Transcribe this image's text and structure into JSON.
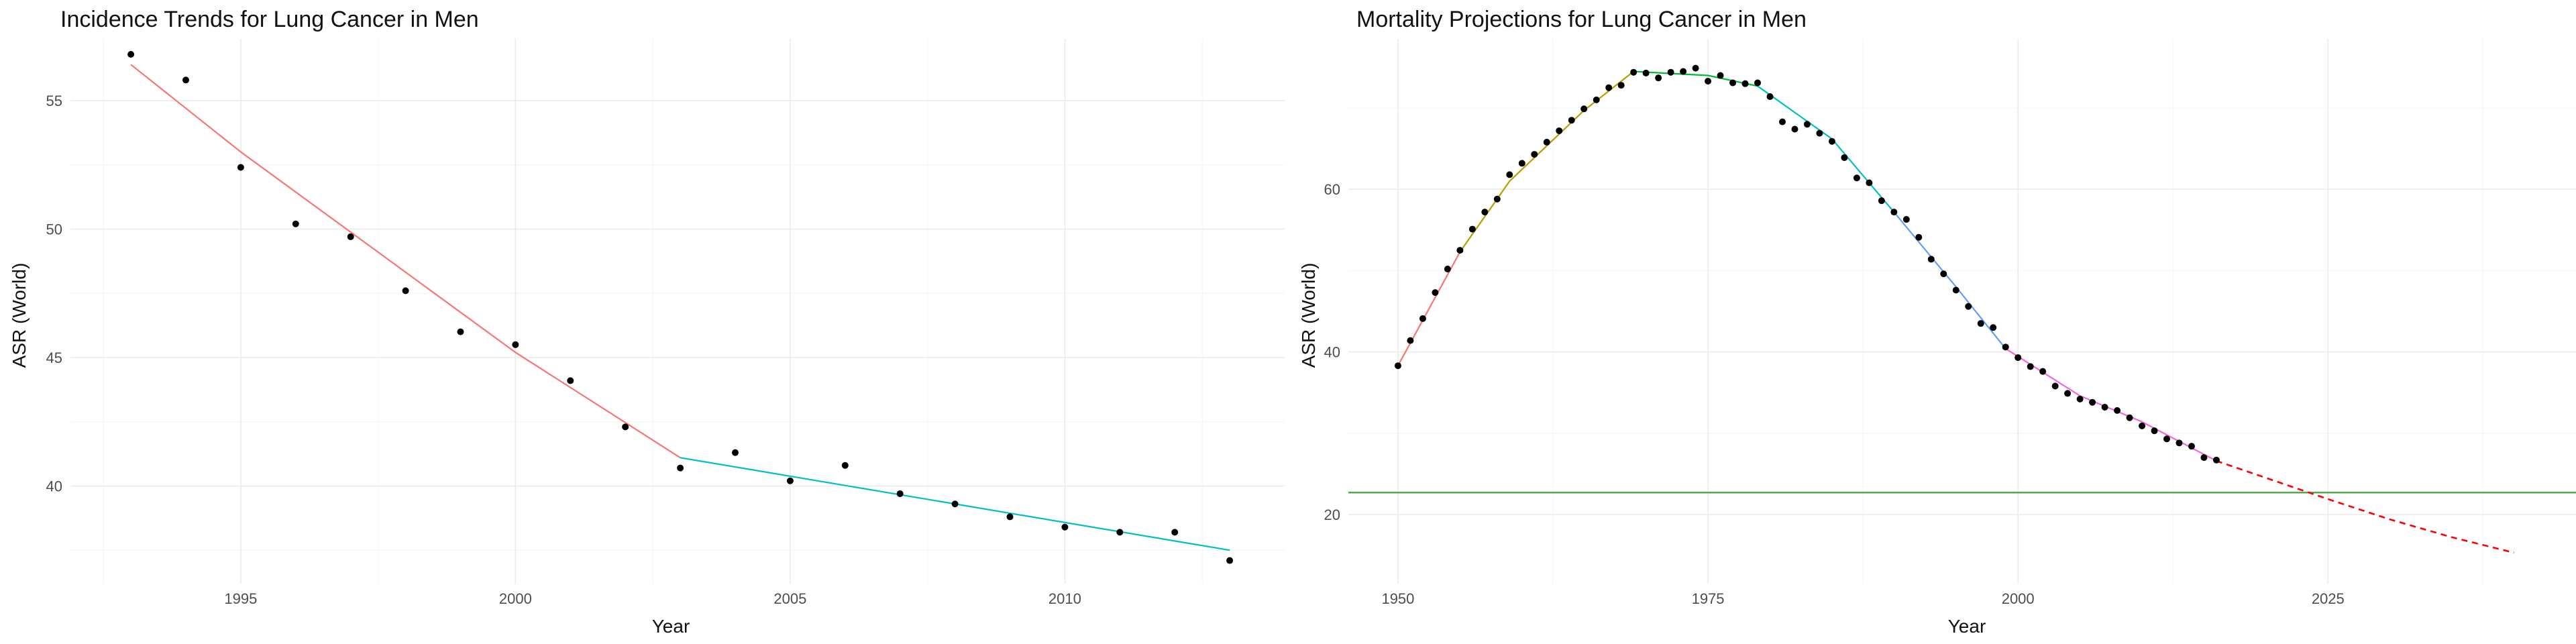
{
  "chart_data": [
    {
      "type": "scatter",
      "title": "Incidence Trends for Lung Cancer in Men",
      "xlabel": "Year",
      "ylabel": "ASR (World)",
      "xlim": [
        1991.9,
        2014.0
      ],
      "ylim": [
        36.2,
        57.4
      ],
      "x_ticks": [
        1995,
        2000,
        2005,
        2010
      ],
      "y_ticks": [
        40,
        45,
        50,
        55
      ],
      "grid": true,
      "legend": "none",
      "points": {
        "x": [
          1993,
          1994,
          1995,
          1996,
          1997,
          1998,
          1999,
          2000,
          2001,
          2002,
          2003,
          2004,
          2005,
          2006,
          2007,
          2008,
          2009,
          2010,
          2011,
          2012,
          2013
        ],
        "y": [
          56.8,
          55.8,
          52.4,
          50.2,
          49.7,
          47.6,
          46.0,
          45.5,
          44.1,
          42.3,
          40.7,
          41.3,
          40.2,
          40.8,
          39.7,
          39.3,
          38.8,
          38.4,
          38.2,
          38.2,
          37.1
        ]
      },
      "series": [
        {
          "color": "#F8766D",
          "style": "solid",
          "x": [
            1993,
            1995,
            2000,
            2003
          ],
          "y": [
            56.4,
            53.0,
            45.2,
            41.1
          ]
        },
        {
          "color": "#00BFC4",
          "style": "solid",
          "x": [
            2003,
            2013
          ],
          "y": [
            41.1,
            37.5
          ]
        }
      ]
    },
    {
      "type": "scatter",
      "title": "Mortality Projections for Lung Cancer in Men",
      "xlabel": "Year",
      "ylabel": "ASR (World)",
      "xlim": [
        1946.0,
        2045.0
      ],
      "ylim": [
        11.5,
        78.5
      ],
      "x_ticks": [
        1950,
        1975,
        2000,
        2025
      ],
      "y_ticks": [
        20,
        40,
        60
      ],
      "grid": true,
      "legend": "none",
      "hline": {
        "y": 22.7,
        "color": "#4DAF4A"
      },
      "points": {
        "x": [
          1950,
          1951,
          1952,
          1953,
          1954,
          1955,
          1956,
          1957,
          1958,
          1959,
          1960,
          1961,
          1962,
          1963,
          1964,
          1965,
          1966,
          1967,
          1968,
          1969,
          1970,
          1971,
          1972,
          1973,
          1974,
          1975,
          1976,
          1977,
          1978,
          1979,
          1980,
          1981,
          1982,
          1983,
          1984,
          1985,
          1986,
          1987,
          1988,
          1989,
          1990,
          1991,
          1992,
          1993,
          1994,
          1995,
          1996,
          1997,
          1998,
          1999,
          2000,
          2001,
          2002,
          2003,
          2004,
          2005,
          2006,
          2007,
          2008,
          2009,
          2010,
          2011,
          2012,
          2013,
          2014,
          2015,
          2016
        ],
        "y": [
          38.3,
          41.4,
          44.1,
          47.3,
          50.2,
          52.5,
          55.1,
          57.2,
          58.8,
          61.8,
          63.2,
          64.3,
          65.8,
          67.2,
          68.5,
          69.9,
          71.0,
          72.5,
          72.8,
          74.4,
          74.3,
          73.7,
          74.4,
          74.5,
          74.9,
          73.3,
          74.0,
          73.1,
          73.0,
          73.1,
          71.4,
          68.3,
          67.4,
          68.0,
          66.9,
          65.9,
          63.9,
          61.4,
          60.8,
          58.6,
          57.2,
          56.3,
          54.1,
          51.4,
          49.6,
          47.6,
          45.6,
          43.5,
          43.0,
          40.6,
          39.3,
          38.2,
          37.6,
          35.8,
          34.9,
          34.2,
          33.8,
          33.2,
          32.8,
          31.9,
          30.9,
          30.3,
          29.3,
          28.8,
          28.4,
          27.0,
          26.7
        ]
      },
      "series": [
        {
          "color": "#F8766D",
          "style": "solid",
          "x": [
            1950,
            1955
          ],
          "y": [
            38.3,
            52.3
          ]
        },
        {
          "color": "#B79F00",
          "style": "solid",
          "x": [
            1955,
            1959,
            1965,
            1969
          ],
          "y": [
            52.3,
            61.0,
            69.7,
            74.5
          ]
        },
        {
          "color": "#00BA38",
          "style": "solid",
          "x": [
            1969,
            1975,
            1979
          ],
          "y": [
            74.5,
            74.0,
            72.7
          ]
        },
        {
          "color": "#00BFC4",
          "style": "solid",
          "x": [
            1979,
            1985,
            1990
          ],
          "y": [
            72.7,
            66.2,
            57.2
          ]
        },
        {
          "color": "#619CFF",
          "style": "solid",
          "x": [
            1990,
            1995,
            1999
          ],
          "y": [
            57.2,
            48.0,
            40.4
          ]
        },
        {
          "color": "#F564E3",
          "style": "solid",
          "x": [
            1999,
            2005,
            2010,
            2016
          ],
          "y": [
            40.4,
            34.6,
            31.4,
            26.6
          ]
        },
        {
          "color": "#FF0000",
          "style": "dashed",
          "x": [
            2016,
            2020,
            2025,
            2030,
            2035,
            2040
          ],
          "y": [
            26.6,
            24.5,
            21.9,
            19.4,
            17.2,
            15.3
          ]
        }
      ]
    }
  ]
}
